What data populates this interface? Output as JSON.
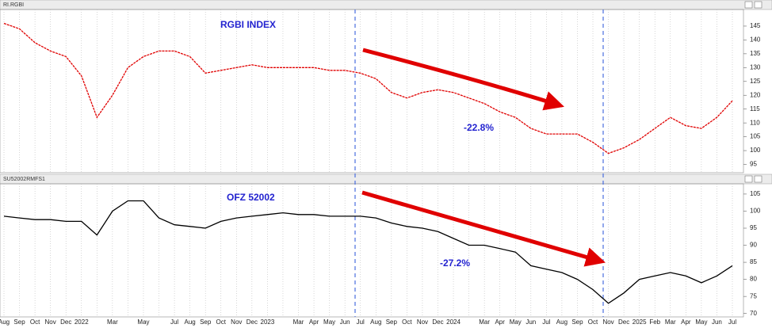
{
  "chart_data": [
    {
      "type": "line",
      "title": "RI.RGBI",
      "color": "#e00000",
      "values": [
        146,
        144,
        139,
        136,
        134,
        127,
        112,
        120,
        130,
        134,
        136,
        136,
        134,
        128,
        129,
        130,
        131,
        130,
        130,
        130,
        130,
        129,
        129,
        128,
        126,
        121,
        119,
        121,
        122,
        121,
        119,
        117,
        114,
        112,
        108,
        106,
        106,
        106,
        103,
        99,
        101,
        104,
        108,
        112,
        109,
        108,
        112,
        118
      ],
      "ylim": [
        92,
        151
      ],
      "yticks": [
        95,
        100,
        105,
        110,
        115,
        120,
        125,
        130,
        135,
        140,
        145
      ],
      "annotations": [
        "RGBI INDEX",
        "-22.8%"
      ]
    },
    {
      "type": "line",
      "title": "SU52002RMFS1",
      "color": "#000000",
      "categories": [
        "Aug",
        "Sep",
        "Oct",
        "Nov",
        "Dec",
        "2022",
        null,
        "Mar",
        null,
        "May",
        null,
        "Jul",
        "Aug",
        "Sep",
        "Oct",
        "Nov",
        "Dec",
        "2023",
        null,
        "Mar",
        "Apr",
        "May",
        "Jun",
        "Jul",
        "Aug",
        "Sep",
        "Oct",
        "Nov",
        "Dec",
        "2024",
        null,
        "Mar",
        "Apr",
        "May",
        "Jun",
        "Jul",
        "Aug",
        "Sep",
        "Oct",
        "Nov",
        "Dec",
        "2025",
        "Feb",
        "Mar",
        "Apr",
        "May",
        "Jun",
        "Jul"
      ],
      "values": [
        98.5,
        98,
        97.5,
        97.5,
        97,
        97,
        93,
        100,
        103,
        103,
        98,
        96,
        95.5,
        95,
        97,
        98,
        98.5,
        99,
        99.5,
        99,
        99,
        98.5,
        98.5,
        98.5,
        98,
        96.5,
        95.5,
        95,
        94,
        92,
        90,
        90,
        89,
        88,
        84,
        83,
        82,
        80,
        77,
        73,
        76,
        80,
        81,
        82,
        81,
        79,
        81,
        84
      ],
      "ylim": [
        69,
        108
      ],
      "yticks": [
        70,
        75,
        80,
        85,
        90,
        95,
        100,
        105
      ],
      "annotations": [
        "OFZ 52002",
        "-27.2%"
      ]
    }
  ]
}
